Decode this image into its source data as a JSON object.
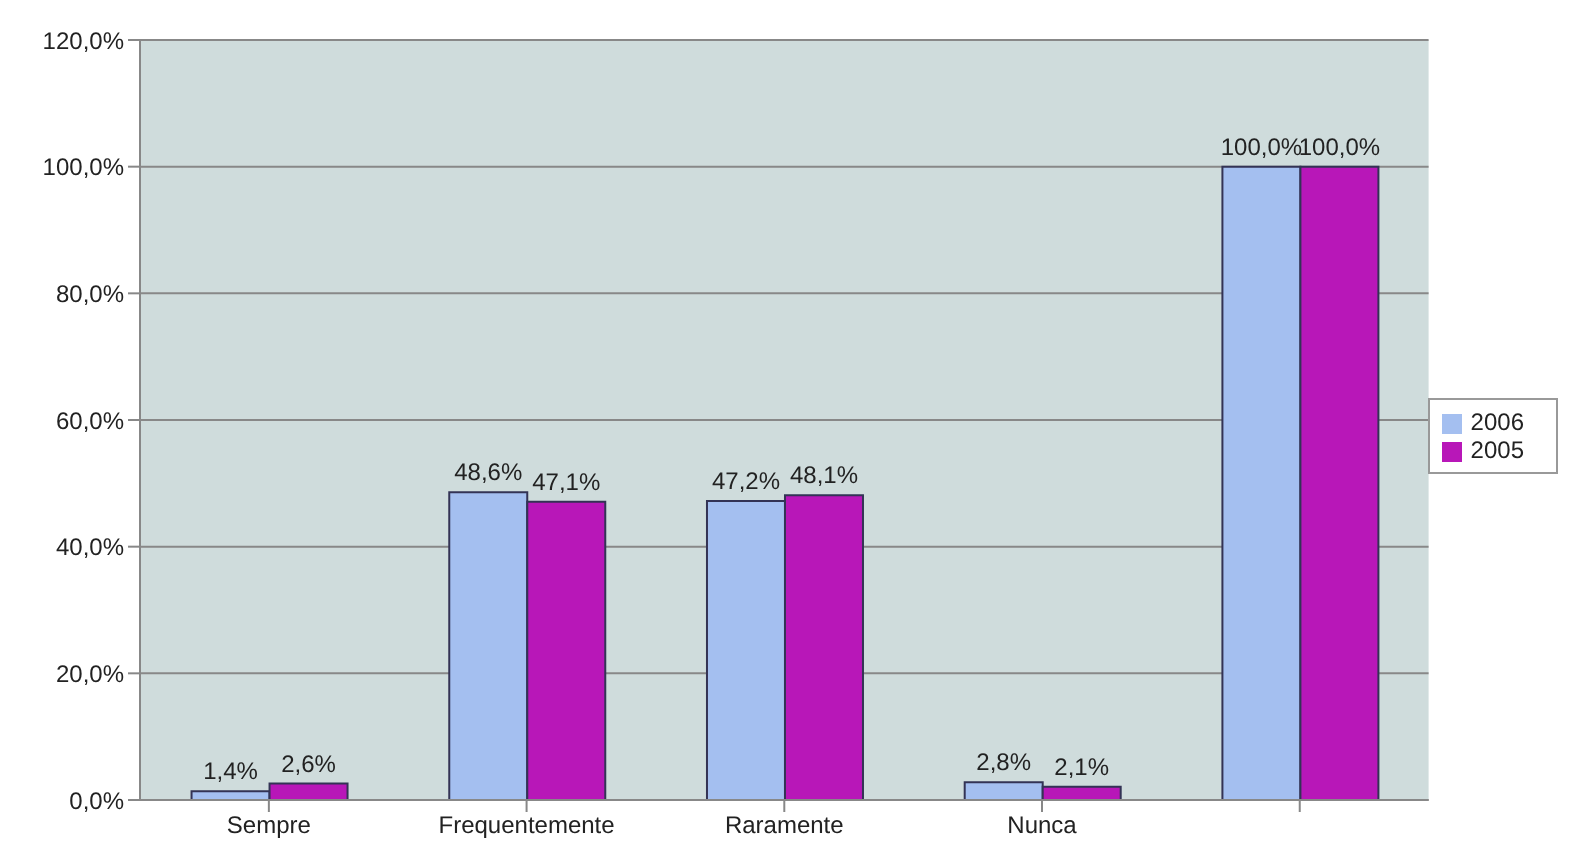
{
  "chart_data": {
    "type": "bar",
    "categories": [
      "Sempre",
      "Frequentemente",
      "Raramente",
      "Nunca",
      null
    ],
    "series": [
      {
        "name": "2006",
        "color": "#a4bff0",
        "values": [
          1.4,
          48.6,
          47.2,
          2.8,
          100.0
        ],
        "value_labels": [
          "1,4%",
          "48,6%",
          "47,2%",
          "2,8%",
          "100,0%"
        ]
      },
      {
        "name": "2005",
        "color": "#b817b8",
        "values": [
          2.6,
          47.1,
          48.1,
          2.1,
          100.0
        ],
        "value_labels": [
          "2,6%",
          "47,1%",
          "48,1%",
          "2,1%",
          "100,0%"
        ]
      }
    ],
    "ylim": [
      0,
      120
    ],
    "yticks": [
      {
        "value": 0,
        "label": "0,0%"
      },
      {
        "value": 20,
        "label": "20,0%"
      },
      {
        "value": 40,
        "label": "40,0%"
      },
      {
        "value": 60,
        "label": "60,0%"
      },
      {
        "value": 80,
        "label": "80,0%"
      },
      {
        "value": 100,
        "label": "100,0%"
      },
      {
        "value": 120,
        "label": "120,0%"
      }
    ],
    "grid": "y",
    "legend": "right"
  }
}
